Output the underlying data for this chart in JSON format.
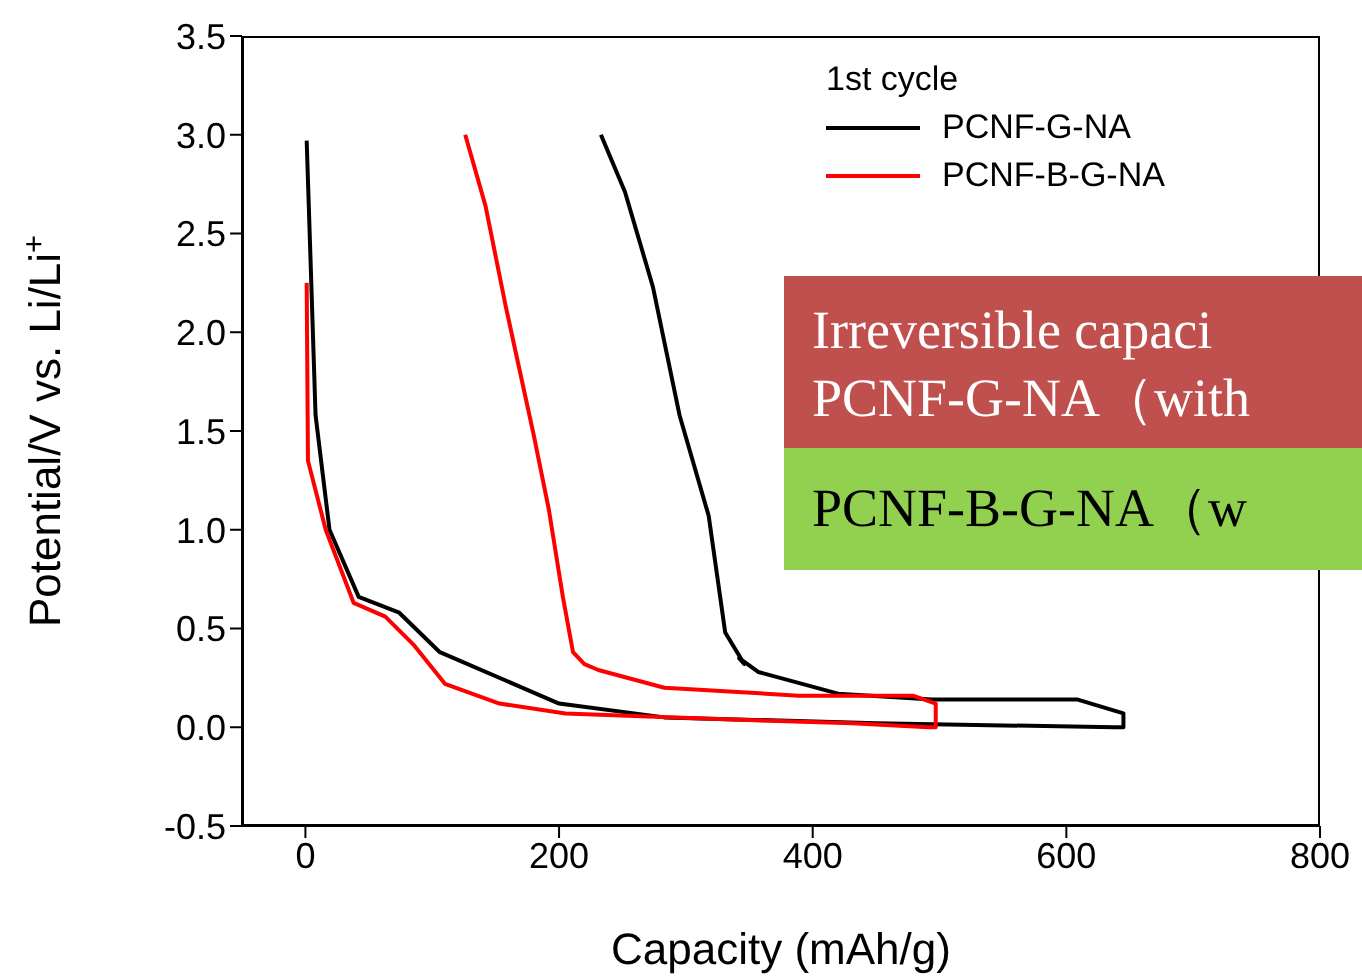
{
  "chart_data": {
    "type": "line",
    "xlabel": "Capacity (mAh/g)",
    "ylabel": "Potential/V vs. Li/Li$^{+}$",
    "legend_title": "1st cycle",
    "legend": "top right",
    "marker": "none",
    "line_style": "solid",
    "xlim": [
      -50,
      800
    ],
    "xticks": [
      0,
      200,
      400,
      600,
      800
    ],
    "ylim": [
      -0.5,
      3.5
    ],
    "yticks": [
      -0.5,
      {
        "value": 0,
        "label": "0.0"
      },
      0.5,
      {
        "value": 1,
        "label": "1.0"
      },
      1.5,
      {
        "value": 2,
        "label": "2.0"
      },
      2.5,
      {
        "value": 3,
        "label": "3.0"
      },
      3.5
    ],
    "series": [
      {
        "name": "PCNF-G-NA",
        "color": "#000000",
        "x": [
          1,
          8,
          19,
          42,
          74,
          106,
          164,
          200,
          283,
          450,
          638,
          645,
          645,
          609,
          494,
          420,
          357,
          342,
          346,
          331,
          318,
          295,
          274,
          252,
          233
        ],
        "values": [
          2.97,
          1.58,
          1.0,
          0.66,
          0.58,
          0.38,
          0.22,
          0.12,
          0.05,
          0.02,
          0.0,
          0.0,
          0.07,
          0.14,
          0.14,
          0.17,
          0.28,
          0.35,
          0.32,
          0.48,
          1.07,
          1.58,
          2.23,
          2.71,
          3.0
        ]
      },
      {
        "name": "PCNF-B-G-NA",
        "color": "#ff0000",
        "x": [
          1,
          2,
          16,
          38,
          63,
          85,
          110,
          153,
          205,
          330,
          431,
          491,
          497,
          497,
          479,
          389,
          283,
          231,
          220,
          211,
          203,
          192,
          180,
          158,
          142,
          126
        ],
        "values": [
          2.25,
          1.35,
          1.0,
          0.63,
          0.56,
          0.42,
          0.22,
          0.12,
          0.07,
          0.04,
          0.02,
          0.0,
          0.0,
          0.12,
          0.16,
          0.16,
          0.2,
          0.29,
          0.32,
          0.38,
          0.66,
          1.1,
          1.48,
          2.13,
          2.64,
          3.0
        ]
      }
    ],
    "annotations": [
      "Irreversible capaci",
      "PCNF-G-NA（with",
      "PCNF-B-G-NA（w"
    ]
  }
}
